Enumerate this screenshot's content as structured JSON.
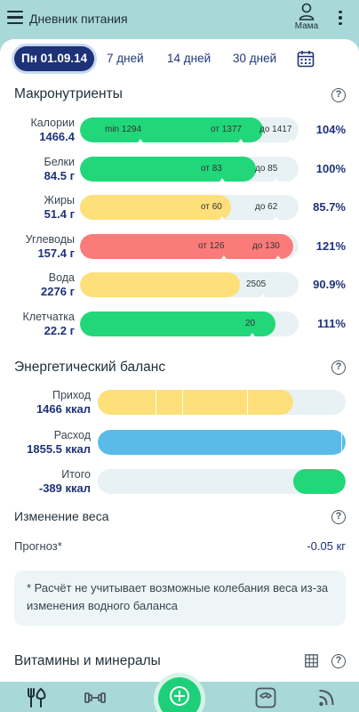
{
  "appbar": {
    "title": "Дневник питания",
    "profile_label": "Мама",
    "icons": [
      "menu-icon",
      "person-icon",
      "more-vert-icon"
    ]
  },
  "tabs": [
    {
      "label": "Пн 01.09.14",
      "active": true
    },
    {
      "label": "7 дней",
      "active": false
    },
    {
      "label": "14 дней",
      "active": false
    },
    {
      "label": "30 дней",
      "active": false
    }
  ],
  "colors": {
    "accent": "#1e3278",
    "green": "#22d77a",
    "yellow": "#fde07a",
    "red": "#fb7b7b",
    "blue": "#5bbbe8",
    "track": "#e8f1f3",
    "appbar": "#a9d8d8"
  },
  "macros": {
    "title": "Макронутриенты",
    "help": "?",
    "rows": [
      {
        "name": "Калории",
        "value": "1466.4",
        "percent": "104%",
        "fill": 1.04,
        "color": "green",
        "markers": [
          {
            "text": "min 1294",
            "pos": 0.112
          },
          {
            "text": "от 1377",
            "pos": 0.596
          },
          {
            "text": "до 1417",
            "pos": 0.82
          }
        ]
      },
      {
        "name": "Белки",
        "value": "84.5 г",
        "percent": "100%",
        "fill": 1.0,
        "color": "green",
        "markers": [
          {
            "text": "от 83",
            "pos": 0.552
          },
          {
            "text": "до 85",
            "pos": 0.8
          }
        ]
      },
      {
        "name": "Жиры",
        "value": "51.4 г",
        "percent": "85.7%",
        "fill": 0.857,
        "color": "yellow",
        "markers": [
          {
            "text": "от 60",
            "pos": 0.552
          },
          {
            "text": "до 62",
            "pos": 0.8
          }
        ]
      },
      {
        "name": "Углеводы",
        "value": "157.4 г",
        "percent": "121%",
        "fill": 1.21,
        "color": "red",
        "markers": [
          {
            "text": "от 126",
            "pos": 0.54
          },
          {
            "text": "до 130",
            "pos": 0.788
          }
        ]
      },
      {
        "name": "Вода",
        "value": "2276 г",
        "percent": "90.9%",
        "fill": 0.909,
        "color": "yellow",
        "markers": [
          {
            "text": "2505",
            "pos": 0.76
          }
        ]
      },
      {
        "name": "Клетчатка",
        "value": "22.2 г",
        "percent": "111%",
        "fill": 1.11,
        "color": "green",
        "markers": [
          {
            "text": "20",
            "pos": 0.756
          }
        ]
      }
    ]
  },
  "energy": {
    "title": "Энергетический баланс",
    "help": "?",
    "rows": [
      {
        "name": "Приход",
        "value": "1466 ккал",
        "fill": 0.79,
        "color": "yellow"
      },
      {
        "name": "Расход",
        "value": "1855.5 ккал",
        "fill": 1.0,
        "color": "blue"
      },
      {
        "name": "Итого",
        "value": "-389 ккал",
        "fill": 0.21,
        "color": "green"
      }
    ]
  },
  "weight": {
    "title": "Изменение веса",
    "help": "?",
    "forecast_label": "Прогноз*",
    "forecast_value": "-0.05 кг",
    "note": "* Расчёт не учитывает возможные колебания веса из-за изменения водного баланса"
  },
  "vitamins": {
    "title": "Витамины и минералы",
    "help": "?"
  },
  "bottom_nav": [
    "food-icon",
    "dumbbell-icon",
    "add-icon",
    "scale-icon",
    "feed-icon"
  ]
}
